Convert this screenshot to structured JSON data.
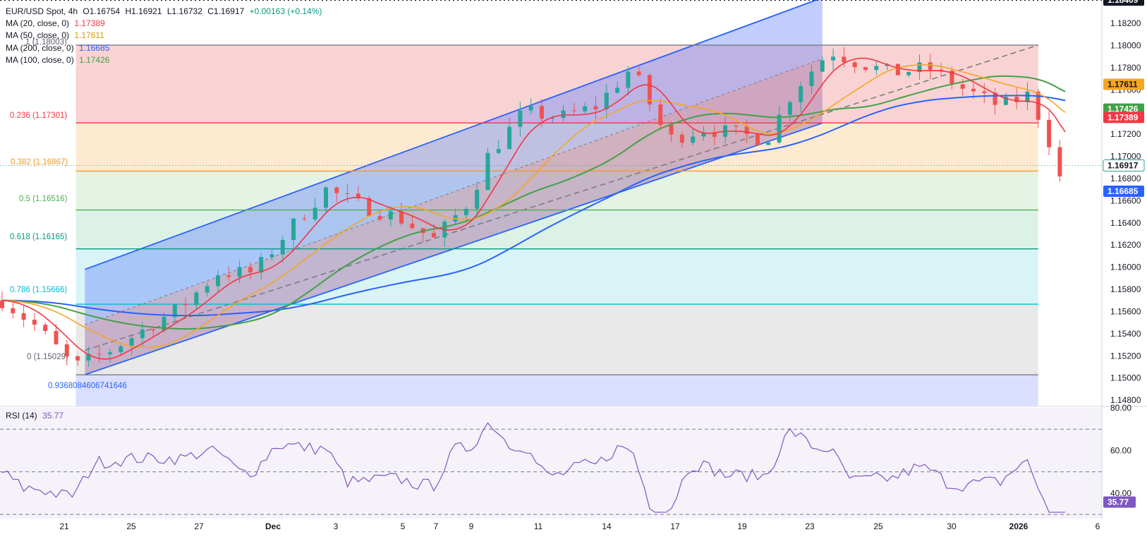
{
  "header": {
    "symbol": "EUR/USD Spot, 4h",
    "open": "O1.16754",
    "high": "H1.16921",
    "low": "L1.16732",
    "close": "C1.16917",
    "change": "+0.00163 (+0.14%)"
  },
  "legend": [
    {
      "label": "MA (20, close, 0)",
      "value": "1.17389",
      "color": "#f23645"
    },
    {
      "label": "MA (50, close, 0)",
      "value": "1.17611",
      "color": "#f5a623"
    },
    {
      "label": "MA (200, close, 0)",
      "value": "1.16685",
      "color": "#2962ff"
    },
    {
      "label": "MA (100, close, 0)",
      "value": "1.17426",
      "color": "#43a047"
    }
  ],
  "rsi_legend": {
    "label": "RSI (14)",
    "value": "35.77",
    "color": "#7e57c2"
  },
  "colors": {
    "up": "#26a69a",
    "down": "#ef5350",
    "ma20": "#f23645",
    "ma50": "#f5a623",
    "ma100": "#43a047",
    "ma200": "#2962ff",
    "rsi": "#7e57c2",
    "channel": "#2962ff"
  },
  "price_axis": {
    "labels": [
      "1.18200",
      "1.18000",
      "1.17800",
      "1.17600",
      "1.17400",
      "1.17200",
      "1.17000",
      "1.16800",
      "1.16600",
      "1.16400",
      "1.16200",
      "1.16000",
      "1.15800",
      "1.15600",
      "1.15400",
      "1.15200",
      "1.15000",
      "1.14800"
    ],
    "badges": [
      {
        "text": "1.18409",
        "kind": "high"
      },
      {
        "text": "1.17611",
        "kind": "ma50"
      },
      {
        "text": "1.17426",
        "kind": "ma100"
      },
      {
        "text": "1.17389",
        "kind": "ma20"
      },
      {
        "text": "1.16917",
        "kind": "last"
      },
      {
        "text": "1.16685",
        "kind": "ma200"
      }
    ]
  },
  "rsi_axis": {
    "labels": [
      "80.00",
      "60.00",
      "40.00"
    ],
    "badge": "35.77"
  },
  "time_axis": {
    "labels": [
      "21",
      "25",
      "27",
      "Dec",
      "3",
      "5",
      "7",
      "9",
      "11",
      "14",
      "17",
      "19",
      "23",
      "25",
      "30",
      "2026",
      "6"
    ]
  },
  "fib_levels": [
    {
      "label": "1 (1.18003)",
      "value": 1.18003
    },
    {
      "label": "0.236 (1.17301)",
      "value": 1.17301
    },
    {
      "label": "0.382 (1.16867)",
      "value": 1.16867
    },
    {
      "label": "0.5 (1.16516)",
      "value": 1.16516
    },
    {
      "label": "0.618 (1.16165)",
      "value": 1.16165
    },
    {
      "label": "0.786 (1.15666)",
      "value": 1.15666
    },
    {
      "label": "0 (1.15029)",
      "value": 1.15029
    },
    {
      "label": "0.9368084606741646",
      "value": null
    }
  ],
  "chart_data": {
    "type": "candlestick",
    "title": "EUR/USD Spot, 4h",
    "ylim": [
      1.1475,
      1.1841
    ],
    "rsi_ylim": [
      28,
      80
    ],
    "rsi_levels": [
      70,
      50,
      30
    ],
    "series": [
      {
        "name": "MA (20, close, 0)",
        "last": 1.17389
      },
      {
        "name": "MA (50, close, 0)",
        "last": 1.17611
      },
      {
        "name": "MA (100, close, 0)",
        "last": 1.17426
      },
      {
        "name": "MA (200, close, 0)",
        "last": 1.16685
      },
      {
        "name": "RSI (14)",
        "last": 35.77
      }
    ],
    "last_close": 1.16917,
    "high_line": 1.18409,
    "points": [
      {
        "bar": 0,
        "close": 1.157
      },
      {
        "bar": 20,
        "close": 1.1545
      },
      {
        "bar": 40,
        "close": 1.151
      },
      {
        "bar": 60,
        "close": 1.1525
      },
      {
        "bar": 80,
        "close": 1.1545
      },
      {
        "bar": 100,
        "close": 1.1565
      },
      {
        "bar": 120,
        "close": 1.1595
      },
      {
        "bar": 140,
        "close": 1.1595
      },
      {
        "bar": 160,
        "close": 1.1635
      },
      {
        "bar": 180,
        "close": 1.167
      },
      {
        "bar": 200,
        "close": 1.1655
      },
      {
        "bar": 220,
        "close": 1.1645
      },
      {
        "bar": 240,
        "close": 1.1625
      },
      {
        "bar": 260,
        "close": 1.166
      },
      {
        "bar": 270,
        "close": 1.17
      },
      {
        "bar": 290,
        "close": 1.174
      },
      {
        "bar": 310,
        "close": 1.1735
      },
      {
        "bar": 330,
        "close": 1.1745
      },
      {
        "bar": 350,
        "close": 1.178
      },
      {
        "bar": 370,
        "close": 1.1715
      },
      {
        "bar": 390,
        "close": 1.1725
      },
      {
        "bar": 410,
        "close": 1.172
      },
      {
        "bar": 425,
        "close": 1.1715
      },
      {
        "bar": 440,
        "close": 1.176
      },
      {
        "bar": 460,
        "close": 1.1795
      },
      {
        "bar": 475,
        "close": 1.1785
      },
      {
        "bar": 495,
        "close": 1.1775
      },
      {
        "bar": 515,
        "close": 1.178
      },
      {
        "bar": 535,
        "close": 1.176
      },
      {
        "bar": 555,
        "close": 1.1745
      },
      {
        "bar": 570,
        "close": 1.1755
      },
      {
        "bar": 580,
        "close": 1.1725
      },
      {
        "bar": 588,
        "close": 1.168
      },
      {
        "bar": 592,
        "close": 1.16917
      }
    ]
  }
}
